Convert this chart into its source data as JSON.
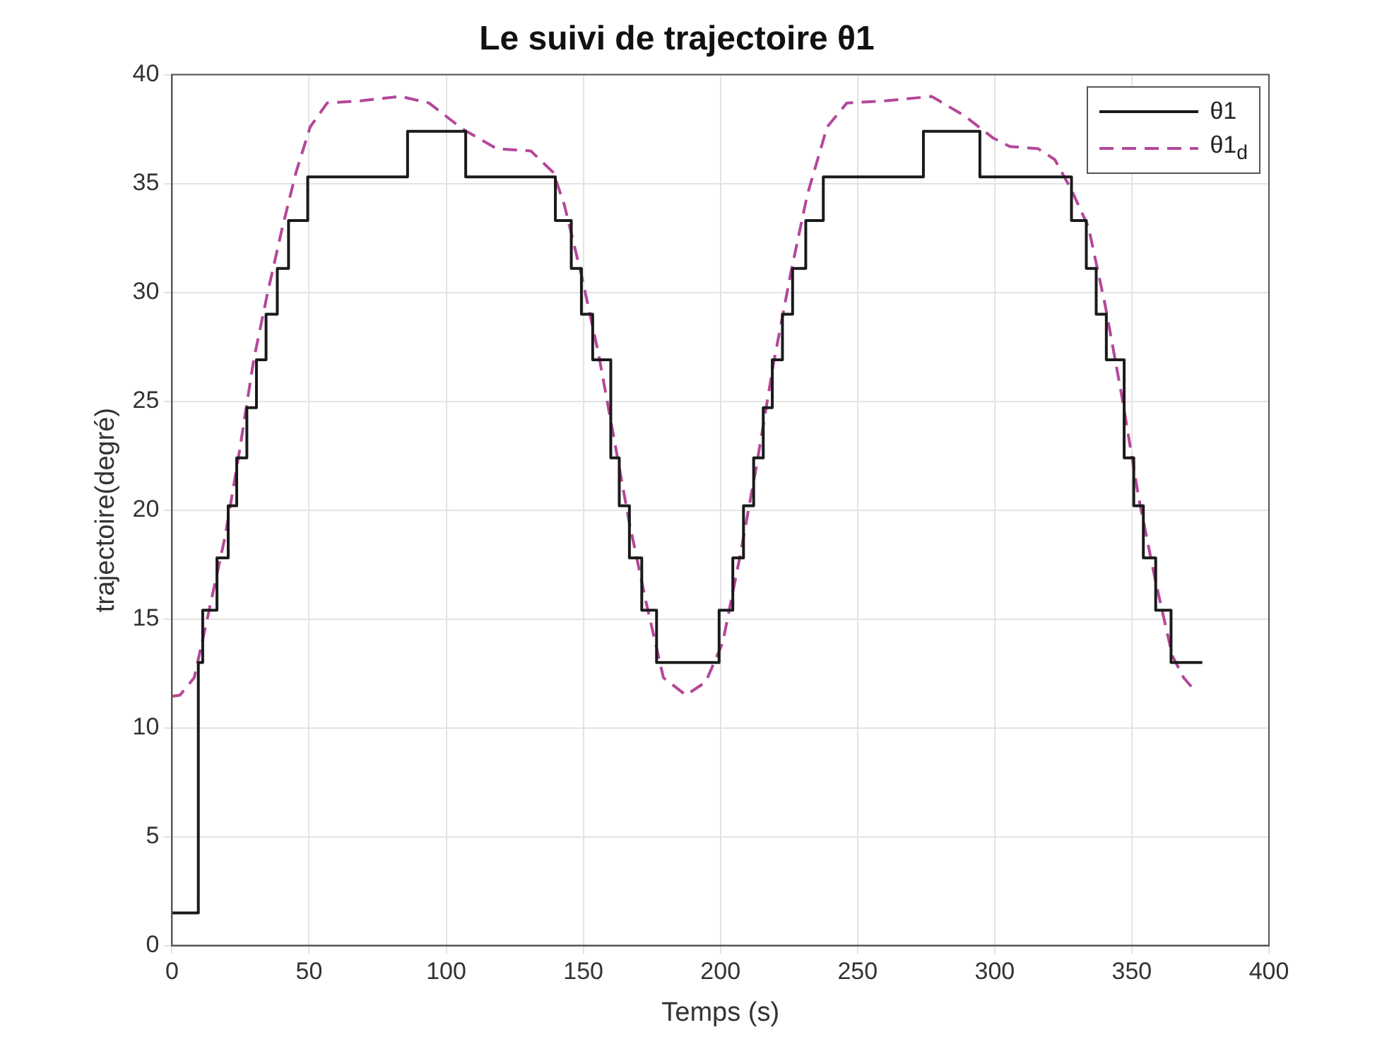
{
  "chart_data": {
    "type": "step",
    "title": "Le suivi de trajectoire θ1",
    "xlabel": "Temps (s)",
    "ylabel": "trajectoire(degré)",
    "xlim": [
      0,
      400
    ],
    "xticks": [
      0,
      50,
      100,
      150,
      200,
      250,
      300,
      350,
      400
    ],
    "ylim": [
      0,
      40
    ],
    "yticks": [
      0,
      5,
      10,
      15,
      20,
      25,
      30,
      35,
      40
    ],
    "grid": true,
    "legend": "top right",
    "marker": "none",
    "series": [
      {
        "name": "θ1",
        "color": "#1a1a1a",
        "type": "step",
        "line_style": "solid",
        "x": [
          0,
          9.6,
          11.2,
          16.4,
          20.5,
          23.6,
          27.3,
          30.8,
          34.3,
          38.4,
          42.5,
          49.5,
          85.9,
          107.1,
          139.8,
          145.6,
          149.3,
          153.4,
          160,
          163.1,
          166.8,
          171.3,
          176.7,
          199.5,
          204.5,
          208.4,
          212.1,
          215.6,
          218.9,
          222.6,
          226.3,
          231.1,
          237.5,
          274,
          294.6,
          328,
          333.4,
          337,
          340.7,
          347.2,
          350.7,
          354.2,
          358.7,
          364.3,
          375.7
        ],
        "values": [
          1.5,
          13,
          15.4,
          17.8,
          20.2,
          22.4,
          24.7,
          26.9,
          29,
          31.1,
          33.3,
          35.3,
          37.4,
          35.3,
          33.3,
          31.1,
          29,
          26.9,
          22.4,
          20.2,
          17.8,
          15.4,
          13,
          15.4,
          17.8,
          20.2,
          22.4,
          24.7,
          26.9,
          29,
          31.1,
          33.3,
          35.3,
          37.4,
          35.3,
          33.3,
          31.1,
          29,
          26.9,
          22.4,
          20.2,
          17.8,
          15.4,
          13,
          13
        ]
      },
      {
        "name": "θ1$_{d}$",
        "color": "#b5479a",
        "type": "line",
        "line_style": "dashed",
        "x": [
          0,
          2.9,
          8.1,
          13.2,
          19.4,
          24.6,
          29.8,
          34.9,
          40.1,
          45.2,
          50.4,
          56.6,
          69,
          83.4,
          93.7,
          106,
          118.4,
          130.8,
          139.1,
          143.1,
          149.3,
          155.5,
          161.6,
          166.8,
          173,
          179.2,
          187.4,
          194.6,
          200.8,
          207,
          213.1,
          219.3,
          225.5,
          231.7,
          238.9,
          246.1,
          260.5,
          277,
          289.1,
          299.3,
          305.5,
          315.8,
          321.9,
          328,
          334.2,
          340.3,
          346.4,
          352.6,
          358.7,
          364.8,
          368.9,
          373
        ],
        "values": [
          11.45,
          11.5,
          12.3,
          15.2,
          18.8,
          22.7,
          26.9,
          30,
          32.9,
          35.5,
          37.6,
          38.7,
          38.8,
          39,
          38.7,
          37.5,
          36.6,
          36.5,
          35.5,
          34,
          30.8,
          27.2,
          23,
          19.4,
          15.7,
          12.3,
          11.5,
          12.1,
          13.9,
          17.8,
          22,
          26.7,
          30.8,
          34.5,
          37.6,
          38.7,
          38.8,
          39,
          38.1,
          37.1,
          36.7,
          36.6,
          36.1,
          34.7,
          33,
          29.4,
          25.2,
          20.5,
          16.7,
          13.3,
          12.3,
          11.7
        ]
      }
    ]
  }
}
